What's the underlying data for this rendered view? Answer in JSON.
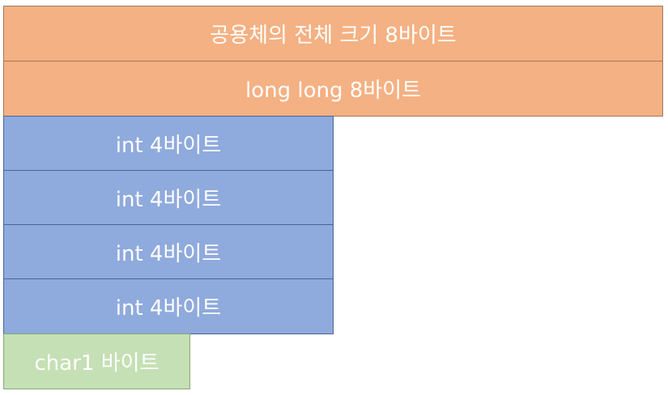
{
  "diagram": {
    "union_total": {
      "label": "공용체의 전체 크기 8바이트",
      "color": "#f4b183"
    },
    "long_long": {
      "label": "long long 8바이트",
      "color": "#f4b183"
    },
    "ints": [
      {
        "label": "int 4바이트",
        "color": "#8faadc"
      },
      {
        "label": "int 4바이트",
        "color": "#8faadc"
      },
      {
        "label": "int 4바이트",
        "color": "#8faadc"
      },
      {
        "label": "int 4바이트",
        "color": "#8faadc"
      }
    ],
    "char": {
      "label": "char1 바이트",
      "color": "#c5e0b4"
    }
  }
}
